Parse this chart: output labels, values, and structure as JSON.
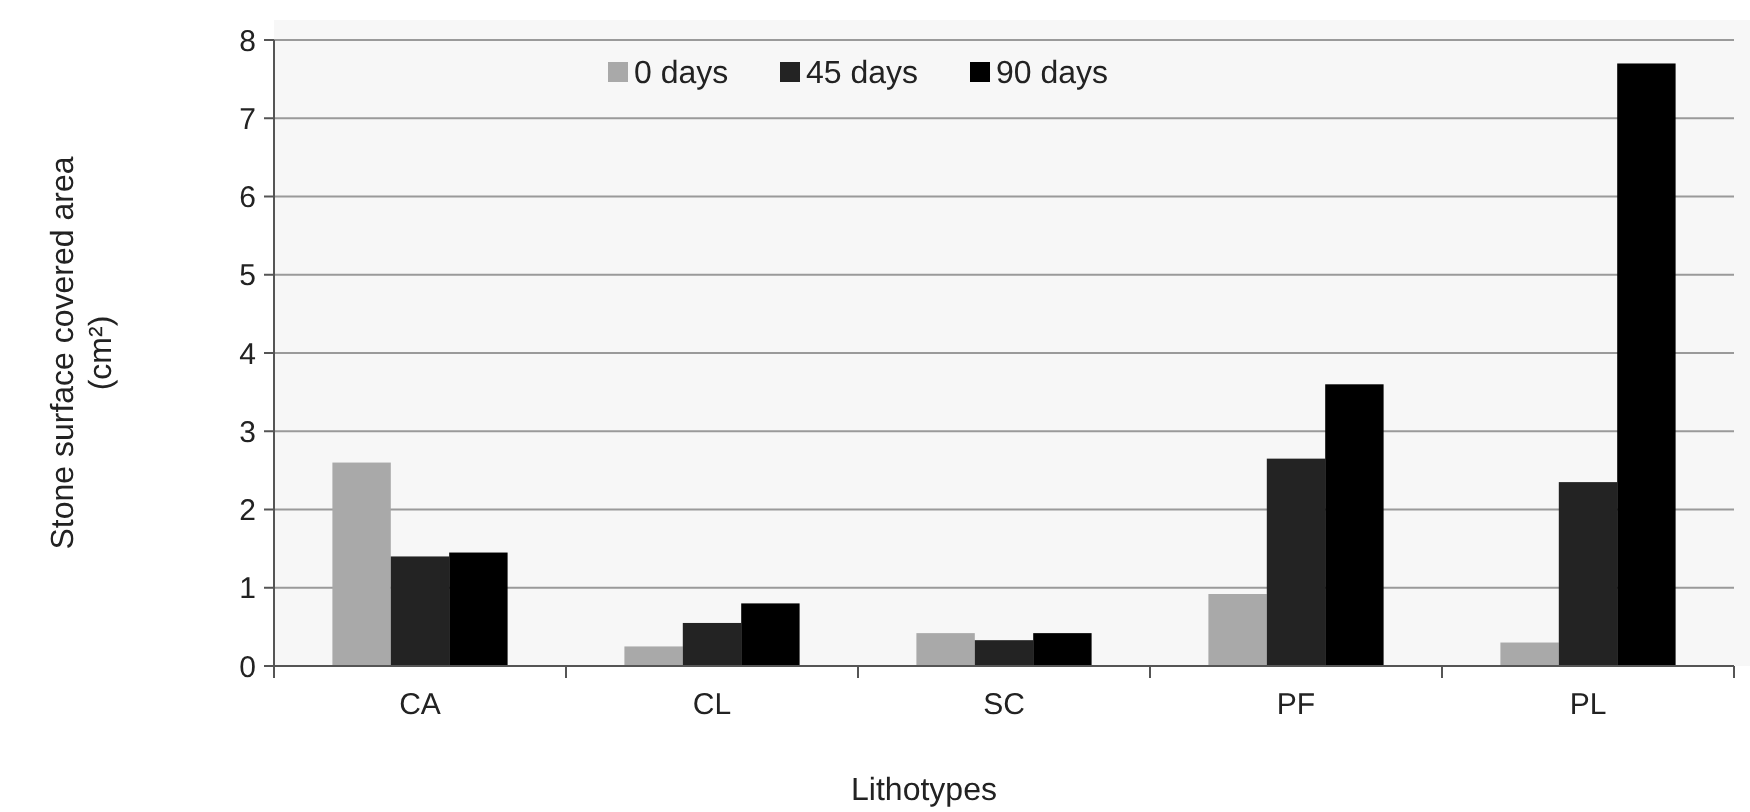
{
  "chart_data": {
    "type": "bar",
    "xlabel": "Lithotypes",
    "ylabel": "Stone surface covered area (cm²)",
    "categories": [
      "CA",
      "CL",
      "SC",
      "PF",
      "PL"
    ],
    "series": [
      {
        "name": "0 days",
        "color": "#a9a9a9",
        "values": [
          2.6,
          0.25,
          0.42,
          0.92,
          0.3
        ]
      },
      {
        "name": "45 days",
        "color": "#232323",
        "values": [
          1.4,
          0.55,
          0.33,
          2.65,
          2.35
        ]
      },
      {
        "name": "90 days",
        "color": "#000000",
        "values": [
          1.45,
          0.8,
          0.42,
          3.6,
          7.7
        ]
      }
    ],
    "ylim": [
      0,
      8
    ],
    "yticks": [
      0,
      1,
      2,
      3,
      4,
      5,
      6,
      7,
      8
    ],
    "grid": "y",
    "legend": "top"
  }
}
